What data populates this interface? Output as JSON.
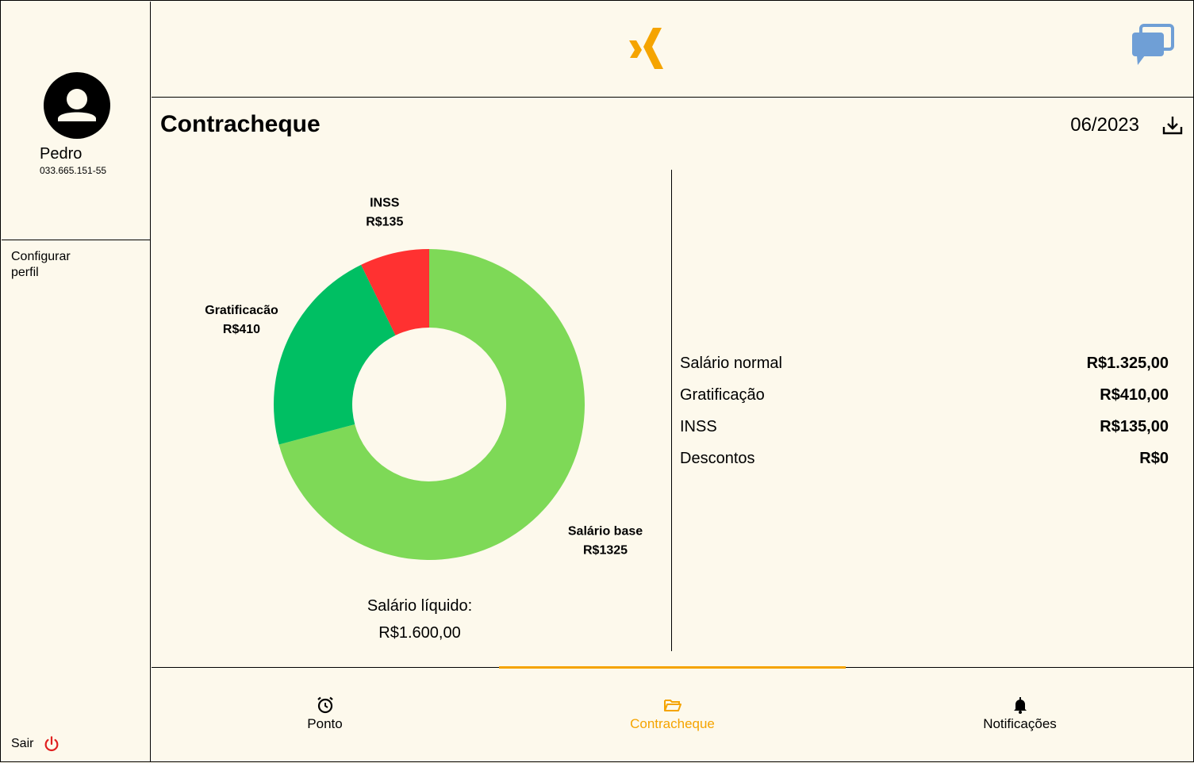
{
  "colors": {
    "background": "#fdf9ec",
    "accent": "#f5a400",
    "chat_icon": "#6f9fd6",
    "logout_icon": "#e02020",
    "salario_base": "#7ed957",
    "gratificacao": "#00bf63",
    "inss": "#ff3131"
  },
  "user": {
    "name": "Pedro",
    "cpf": "033.665.151-55",
    "avatar_icon": "user-avatar-icon"
  },
  "sidebar": {
    "config_label": "Configurar perfil",
    "logout_label": "Sair",
    "logout_icon": "power-icon"
  },
  "header": {
    "logo_icon": "xing-logo-icon",
    "chat_icon": "chat-bubbles-icon"
  },
  "page": {
    "title": "Contracheque",
    "period": "06/2023",
    "download_icon": "download-icon"
  },
  "chart_data": {
    "type": "pie",
    "variant": "donut",
    "slices": [
      {
        "label": "Salário base",
        "value": 1325,
        "value_label": "R$1325",
        "color": "#7ed957"
      },
      {
        "label": "Gratificacão",
        "value": 410,
        "value_label": "R$410",
        "color": "#00bf63"
      },
      {
        "label": "INSS",
        "value": 135,
        "value_label": "R$135",
        "color": "#ff3131"
      }
    ]
  },
  "net": {
    "label": "Salário líquido:",
    "value": "R$1.600,00"
  },
  "details": [
    {
      "label": "Salário normal",
      "value": "R$1.325,00"
    },
    {
      "label": "Gratificação",
      "value": "R$410,00"
    },
    {
      "label": "INSS",
      "value": "R$135,00"
    },
    {
      "label": "Descontos",
      "value": "R$0"
    }
  ],
  "nav": {
    "items": [
      {
        "label": "Ponto",
        "icon": "alarm-clock-icon",
        "active": false
      },
      {
        "label": "Contracheque",
        "icon": "folder-open-icon",
        "active": true
      },
      {
        "label": "Notificações",
        "icon": "bell-icon",
        "active": false
      }
    ]
  }
}
